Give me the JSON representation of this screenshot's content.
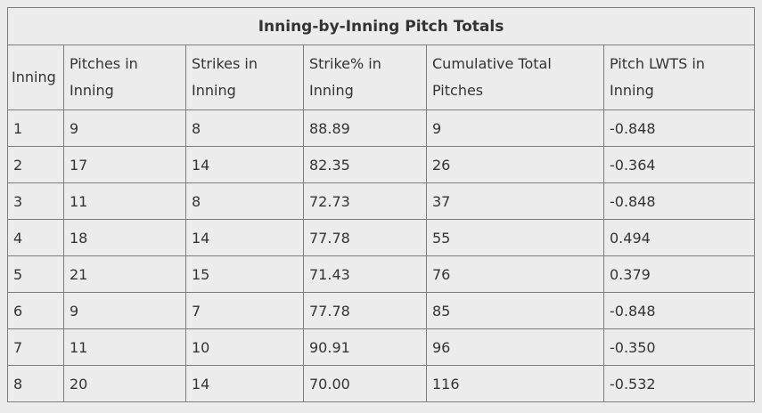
{
  "title": "Inning-by-Inning Pitch Totals",
  "headers": [
    "Inning",
    "Pitches in Inning",
    "Strikes in Inning",
    "Strike% in Inning",
    "Cumulative Total Pitches",
    "Pitch LWTS in Inning"
  ],
  "rows": [
    [
      "1",
      "9",
      "8",
      "88.89",
      "9",
      "-0.848"
    ],
    [
      "2",
      "17",
      "14",
      "82.35",
      "26",
      "-0.364"
    ],
    [
      "3",
      "11",
      "8",
      "72.73",
      "37",
      "-0.848"
    ],
    [
      "4",
      "18",
      "14",
      "77.78",
      "55",
      "0.494"
    ],
    [
      "5",
      "21",
      "15",
      "71.43",
      "76",
      "0.379"
    ],
    [
      "6",
      "9",
      "7",
      "77.78",
      "85",
      "-0.848"
    ],
    [
      "7",
      "11",
      "10",
      "90.91",
      "96",
      "-0.350"
    ],
    [
      "8",
      "20",
      "14",
      "70.00",
      "116",
      "-0.532"
    ]
  ],
  "colors": {
    "page_background": "#ececec",
    "border": "#7d7d7d",
    "text": "#333333"
  }
}
